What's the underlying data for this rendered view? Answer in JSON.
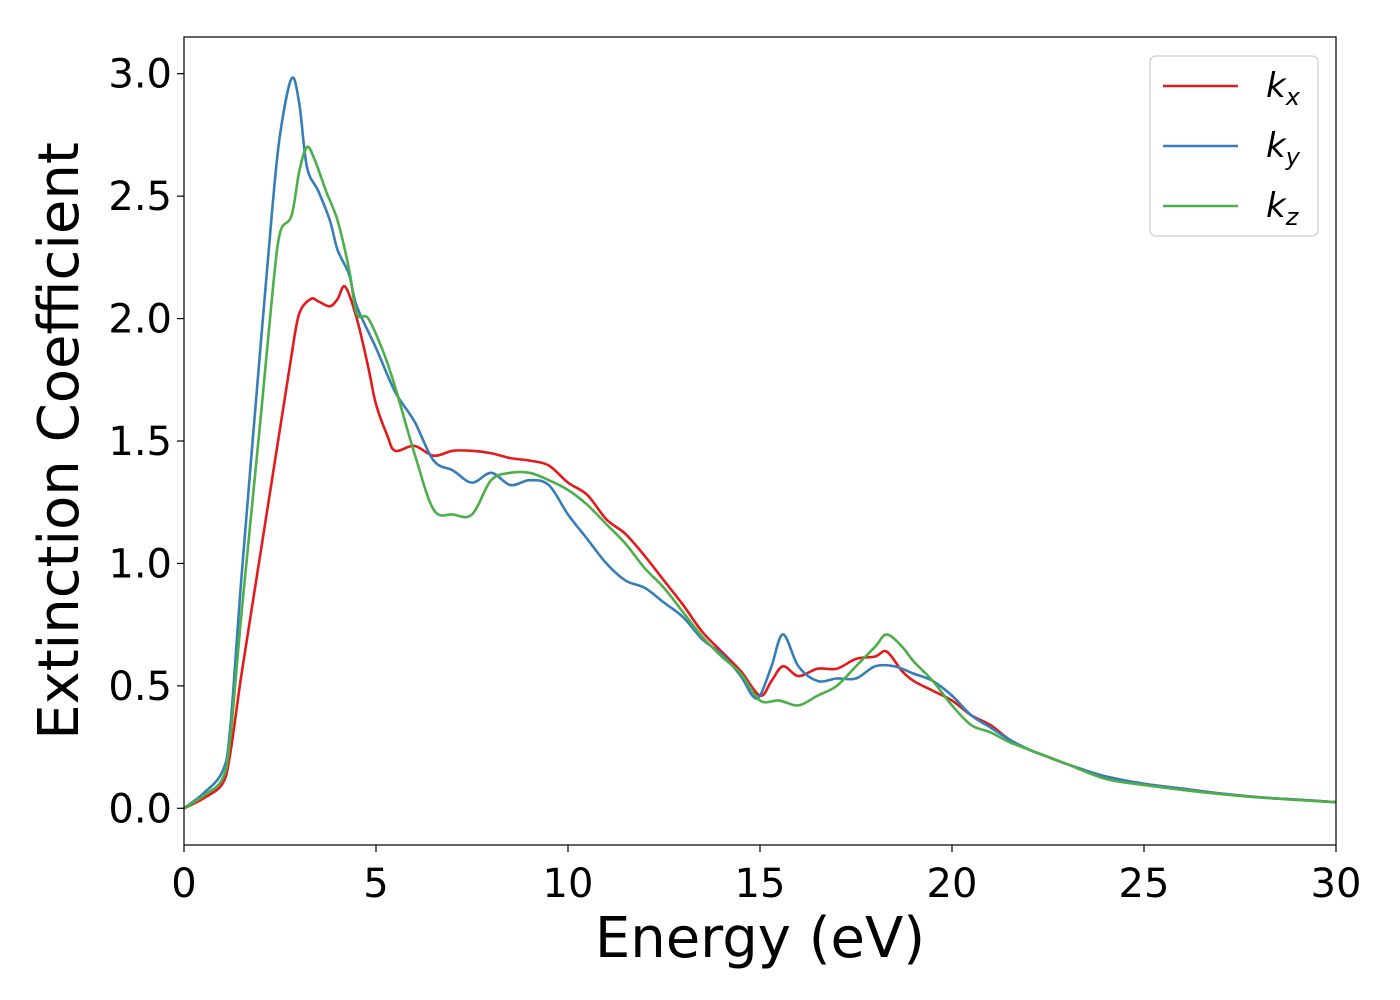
{
  "chart_data": {
    "type": "line",
    "xlabel": "Energy (eV)",
    "ylabel": "Extinction Coefficient",
    "xlim": [
      0,
      30
    ],
    "ylim": [
      -0.15,
      3.15
    ],
    "xticks": [
      "0",
      "5",
      "10",
      "15",
      "20",
      "25",
      "30"
    ],
    "yticks": [
      "0.0",
      "0.5",
      "1.0",
      "1.5",
      "2.0",
      "2.5",
      "3.0"
    ],
    "grid": false,
    "legend_position": "top-right",
    "series": [
      {
        "name": "k",
        "subscript": "x",
        "color": "#e41a1c",
        "x": [
          0,
          0.5,
          1,
          1.2,
          1.5,
          2,
          2.5,
          2.8,
          3,
          3.3,
          3.5,
          3.8,
          4,
          4.2,
          4.5,
          4.8,
          5,
          5.3,
          5.5,
          6,
          6.5,
          7,
          7.5,
          8,
          8.5,
          9,
          9.5,
          10,
          10.5,
          11,
          11.5,
          12,
          12.5,
          13,
          13.5,
          14,
          14.5,
          15,
          15.3,
          15.6,
          16,
          16.5,
          17,
          17.5,
          18,
          18.3,
          18.7,
          19,
          19.5,
          20,
          20.5,
          21,
          21.5,
          22,
          22.5,
          23,
          24,
          25,
          26,
          27,
          28,
          29,
          30
        ],
        "y": [
          0,
          0.04,
          0.1,
          0.22,
          0.55,
          1.05,
          1.55,
          1.85,
          2.02,
          2.08,
          2.07,
          2.05,
          2.08,
          2.13,
          2.0,
          1.8,
          1.65,
          1.52,
          1.46,
          1.48,
          1.44,
          1.46,
          1.46,
          1.45,
          1.43,
          1.42,
          1.4,
          1.33,
          1.28,
          1.18,
          1.12,
          1.03,
          0.93,
          0.83,
          0.72,
          0.64,
          0.56,
          0.46,
          0.52,
          0.58,
          0.54,
          0.57,
          0.57,
          0.61,
          0.62,
          0.64,
          0.56,
          0.52,
          0.48,
          0.44,
          0.38,
          0.34,
          0.28,
          0.24,
          0.21,
          0.18,
          0.13,
          0.1,
          0.08,
          0.06,
          0.045,
          0.035,
          0.025
        ]
      },
      {
        "name": "k",
        "subscript": "y",
        "color": "#377eb8",
        "x": [
          0,
          0.5,
          1,
          1.2,
          1.5,
          2,
          2.3,
          2.5,
          2.8,
          3,
          3.2,
          3.5,
          3.8,
          4,
          4.3,
          4.5,
          5,
          5.5,
          6,
          6.5,
          7,
          7.5,
          8,
          8.5,
          9,
          9.5,
          10,
          10.5,
          11,
          11.5,
          12,
          12.5,
          13,
          13.5,
          14,
          14.5,
          14.8,
          15,
          15.3,
          15.6,
          16,
          16.5,
          17,
          17.5,
          18,
          18.5,
          19,
          19.5,
          20,
          20.5,
          21,
          21.5,
          22,
          22.5,
          23,
          24,
          25,
          26,
          27,
          28,
          29,
          30
        ],
        "y": [
          0,
          0.06,
          0.15,
          0.32,
          0.95,
          1.9,
          2.45,
          2.75,
          2.98,
          2.88,
          2.62,
          2.52,
          2.4,
          2.28,
          2.18,
          2.05,
          1.88,
          1.7,
          1.58,
          1.42,
          1.38,
          1.33,
          1.37,
          1.32,
          1.34,
          1.32,
          1.2,
          1.1,
          1.0,
          0.93,
          0.9,
          0.84,
          0.78,
          0.69,
          0.63,
          0.54,
          0.46,
          0.46,
          0.58,
          0.71,
          0.58,
          0.52,
          0.53,
          0.53,
          0.58,
          0.58,
          0.55,
          0.52,
          0.46,
          0.38,
          0.33,
          0.28,
          0.24,
          0.21,
          0.18,
          0.13,
          0.1,
          0.08,
          0.06,
          0.045,
          0.035,
          0.025
        ]
      },
      {
        "name": "k",
        "subscript": "z",
        "color": "#4daf4a",
        "x": [
          0,
          0.5,
          1,
          1.2,
          1.5,
          2,
          2.3,
          2.5,
          2.8,
          3,
          3.2,
          3.4,
          3.7,
          4,
          4.3,
          4.5,
          4.8,
          5.2,
          5.5,
          6,
          6.5,
          7,
          7.5,
          8,
          8.5,
          9,
          9.5,
          10,
          10.5,
          11,
          11.5,
          12,
          12.5,
          13,
          13.5,
          14,
          14.5,
          15,
          15.5,
          16,
          16.5,
          17,
          17.5,
          18,
          18.3,
          18.7,
          19,
          19.5,
          20,
          20.5,
          21,
          21.5,
          22,
          22.5,
          23,
          24,
          25,
          26,
          27,
          28,
          29,
          30
        ],
        "y": [
          0,
          0.05,
          0.12,
          0.28,
          0.8,
          1.6,
          2.1,
          2.35,
          2.42,
          2.6,
          2.7,
          2.65,
          2.52,
          2.4,
          2.2,
          2.02,
          2.0,
          1.86,
          1.72,
          1.45,
          1.22,
          1.2,
          1.2,
          1.34,
          1.37,
          1.37,
          1.34,
          1.3,
          1.24,
          1.16,
          1.08,
          0.98,
          0.9,
          0.8,
          0.7,
          0.62,
          0.55,
          0.44,
          0.44,
          0.42,
          0.46,
          0.5,
          0.58,
          0.66,
          0.71,
          0.66,
          0.6,
          0.52,
          0.42,
          0.34,
          0.31,
          0.27,
          0.24,
          0.21,
          0.18,
          0.12,
          0.095,
          0.075,
          0.058,
          0.044,
          0.034,
          0.025
        ]
      }
    ]
  }
}
